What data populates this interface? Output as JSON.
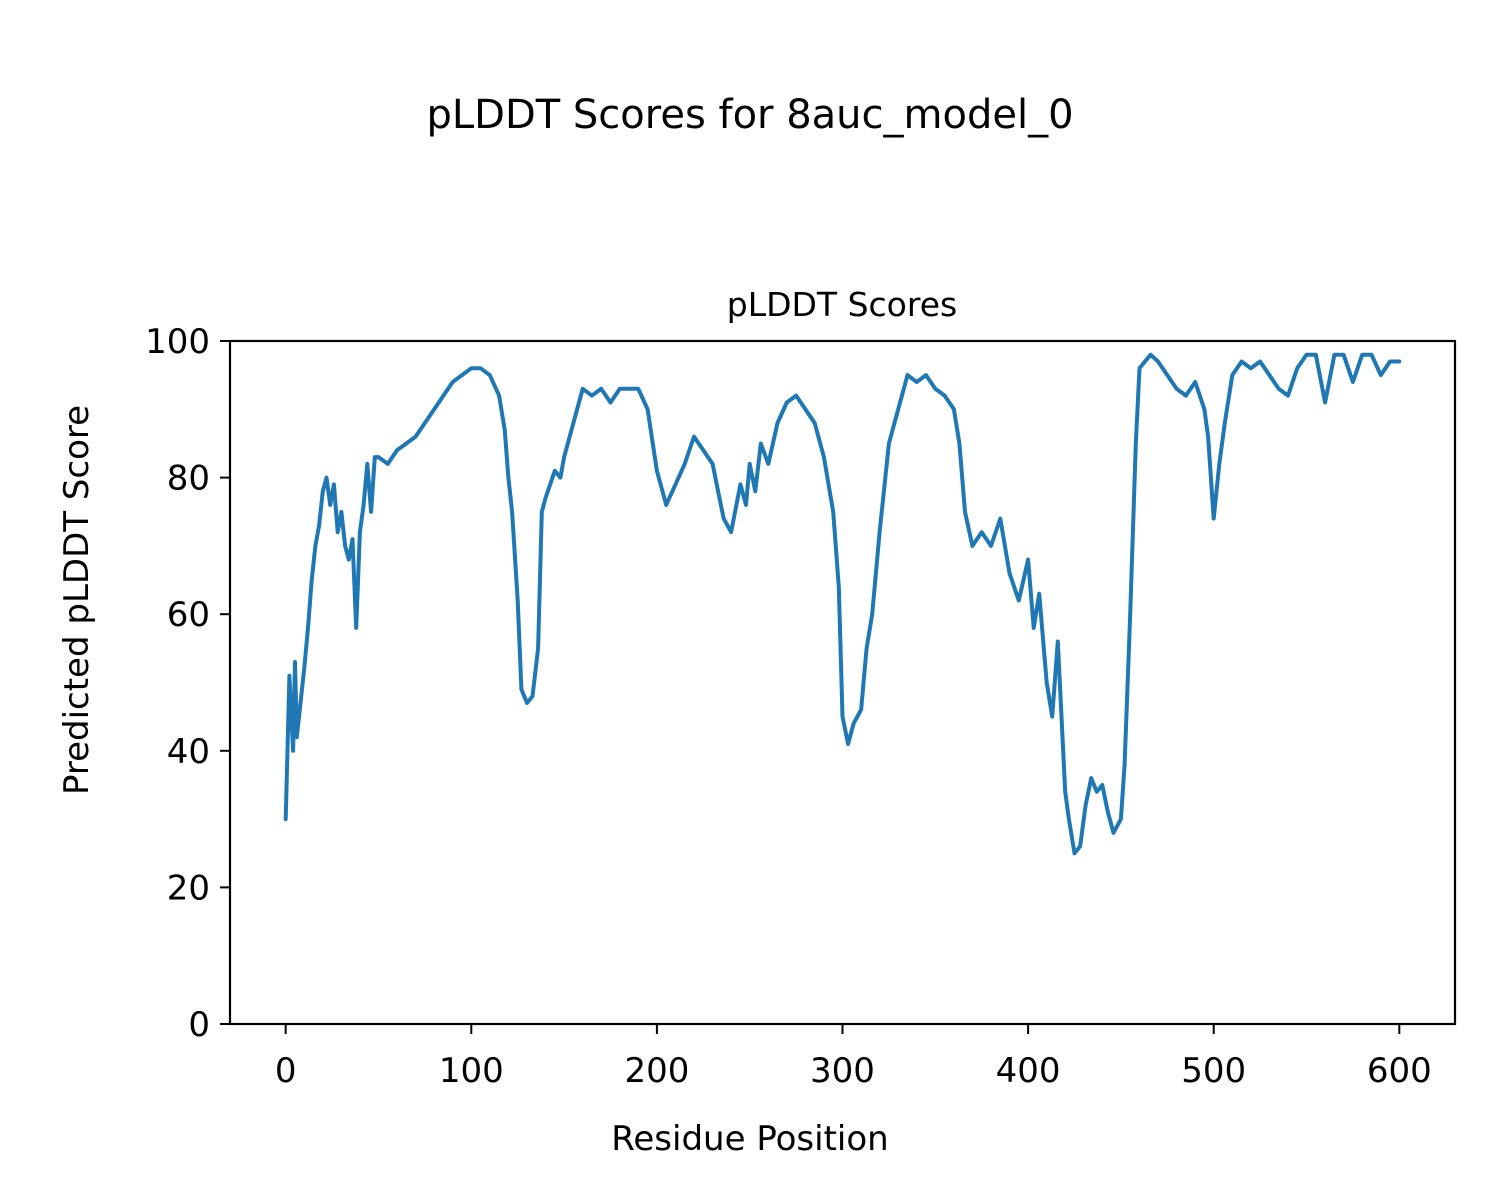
{
  "figure": {
    "suptitle": "pLDDT Scores for 8auc_model_0"
  },
  "chart_data": {
    "type": "line",
    "title": "pLDDT Scores",
    "xlabel": "Residue Position",
    "ylabel": "Predicted pLDDT Score",
    "xlim": [
      -30,
      630
    ],
    "ylim": [
      0,
      100
    ],
    "xticks": [
      0,
      100,
      200,
      300,
      400,
      500,
      600
    ],
    "yticks": [
      0,
      20,
      40,
      60,
      80,
      100
    ],
    "xtick_labels": [
      "0",
      "100",
      "200",
      "300",
      "400",
      "500",
      "600"
    ],
    "ytick_labels": [
      "0",
      "20",
      "40",
      "60",
      "80",
      "100"
    ],
    "grid": false,
    "line_color": "#1f77b4",
    "series": [
      {
        "name": "",
        "x": [
          0,
          2,
          4,
          5,
          6,
          8,
          10,
          12,
          14,
          16,
          18,
          20,
          22,
          24,
          26,
          28,
          30,
          32,
          34,
          36,
          38,
          40,
          42,
          44,
          46,
          48,
          50,
          55,
          60,
          65,
          70,
          75,
          80,
          85,
          90,
          95,
          100,
          105,
          110,
          115,
          118,
          120,
          122,
          125,
          127,
          130,
          133,
          136,
          138,
          140,
          145,
          148,
          150,
          155,
          160,
          165,
          170,
          175,
          180,
          185,
          190,
          195,
          200,
          205,
          210,
          215,
          220,
          225,
          230,
          233,
          236,
          240,
          245,
          248,
          250,
          253,
          256,
          260,
          265,
          270,
          275,
          280,
          285,
          290,
          295,
          298,
          300,
          303,
          306,
          310,
          313,
          316,
          320,
          325,
          330,
          335,
          340,
          345,
          350,
          355,
          360,
          363,
          366,
          370,
          375,
          380,
          385,
          390,
          395,
          400,
          403,
          406,
          410,
          413,
          416,
          420,
          422,
          425,
          428,
          431,
          434,
          437,
          440,
          443,
          446,
          450,
          452,
          455,
          458,
          460,
          463,
          466,
          470,
          475,
          480,
          485,
          490,
          495,
          497,
          500,
          503,
          506,
          510,
          515,
          520,
          525,
          530,
          535,
          540,
          545,
          550,
          555,
          560,
          565,
          570,
          575,
          580,
          585,
          590,
          595,
          600
        ],
        "values": [
          30,
          51,
          40,
          53,
          42,
          47,
          52,
          58,
          65,
          70,
          73,
          78,
          80,
          76,
          79,
          72,
          75,
          70,
          68,
          71,
          58,
          72,
          76,
          82,
          75,
          83,
          83,
          82,
          84,
          85,
          86,
          88,
          90,
          92,
          94,
          95,
          96,
          96,
          95,
          92,
          87,
          80,
          75,
          62,
          49,
          47,
          48,
          55,
          75,
          77,
          81,
          80,
          83,
          88,
          93,
          92,
          93,
          91,
          93,
          93,
          93,
          90,
          81,
          76,
          79,
          82,
          86,
          84,
          82,
          78,
          74,
          72,
          79,
          76,
          82,
          78,
          85,
          82,
          88,
          91,
          92,
          90,
          88,
          83,
          75,
          64,
          45,
          41,
          44,
          46,
          55,
          60,
          72,
          85,
          90,
          95,
          94,
          95,
          93,
          92,
          90,
          85,
          75,
          70,
          72,
          70,
          74,
          66,
          62,
          68,
          58,
          63,
          50,
          45,
          56,
          34,
          30,
          25,
          26,
          32,
          36,
          34,
          35,
          31,
          28,
          30,
          38,
          60,
          85,
          96,
          97,
          98,
          97,
          95,
          93,
          92,
          94,
          90,
          86,
          74,
          82,
          88,
          95,
          97,
          96,
          97,
          95,
          93,
          92,
          96,
          98,
          98,
          91,
          98,
          98,
          94,
          98,
          98,
          95,
          97,
          97
        ]
      }
    ]
  }
}
